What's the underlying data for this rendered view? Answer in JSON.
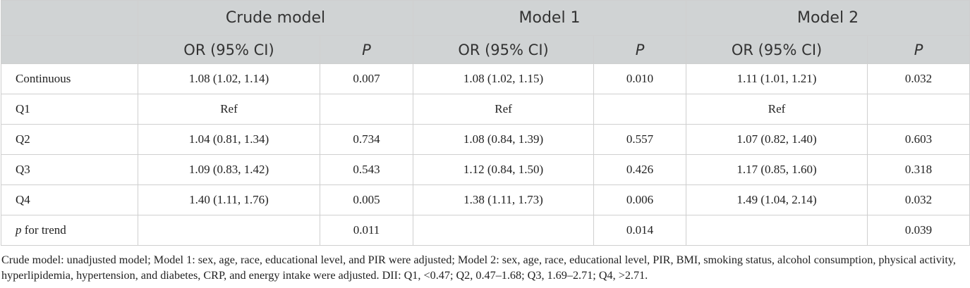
{
  "header": {
    "groups": [
      "Crude model",
      "Model 1",
      "Model 2"
    ],
    "sub": {
      "or_label": "OR (95% CI)",
      "p_label": "P"
    }
  },
  "rows": [
    {
      "label": "Continuous",
      "label_suffix": "",
      "cells": [
        "1.08 (1.02, 1.14)",
        "0.007",
        "1.08 (1.02, 1.15)",
        "0.010",
        "1.11 (1.01, 1.21)",
        "0.032"
      ]
    },
    {
      "label": "Q1",
      "label_suffix": "",
      "cells": [
        "Ref",
        "",
        "Ref",
        "",
        "Ref",
        ""
      ]
    },
    {
      "label": "Q2",
      "label_suffix": "",
      "cells": [
        "1.04 (0.81, 1.34)",
        "0.734",
        "1.08 (0.84, 1.39)",
        "0.557",
        "1.07 (0.82, 1.40)",
        "0.603"
      ]
    },
    {
      "label": "Q3",
      "label_suffix": "",
      "cells": [
        "1.09 (0.83, 1.42)",
        "0.543",
        "1.12 (0.84, 1.50)",
        "0.426",
        "1.17 (0.85, 1.60)",
        "0.318"
      ]
    },
    {
      "label": "Q4",
      "label_suffix": "",
      "cells": [
        "1.40 (1.11, 1.76)",
        "0.005",
        "1.38 (1.11, 1.73)",
        "0.006",
        "1.49 (1.04, 2.14)",
        "0.032"
      ]
    },
    {
      "label": "p",
      "label_suffix": " for trend",
      "cells": [
        "",
        "0.011",
        "",
        "0.014",
        "",
        "0.039"
      ]
    }
  ],
  "footnote": "Crude model: unadjusted model; Model 1: sex, age, race, educational level, and PIR were adjusted; Model 2: sex, age, race, educational level, PIR, BMI, smoking status, alcohol consumption, physical activity, hyperlipidemia, hypertension, and diabetes, CRP, and energy intake were adjusted. DII: Q1, <0.47; Q2, 0.47–1.68; Q3, 1.69–2.71; Q4, >2.71.",
  "colors": {
    "header_bg": "#d0d3d4",
    "border": "#cfcfcf",
    "text": "#222222"
  }
}
